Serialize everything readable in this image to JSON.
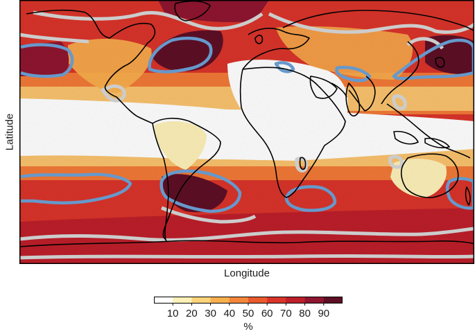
{
  "axes": {
    "xlabel": "Longitude",
    "ylabel": "Latitude"
  },
  "colorbar": {
    "unit": "%",
    "ticks": [
      "10",
      "20",
      "30",
      "40",
      "50",
      "60",
      "70",
      "80",
      "90"
    ],
    "colors": [
      "#ffffff",
      "#fdf0b8",
      "#fbd47a",
      "#f8b04e",
      "#f4863a",
      "#ea5a2e",
      "#d9342a",
      "#bd1f2a",
      "#8f1530",
      "#5e0f26"
    ]
  },
  "colors": {
    "coastline": "#000000",
    "contour_high": "#6699cc",
    "contour_low": "#cccccc",
    "frame": "#000000"
  }
}
